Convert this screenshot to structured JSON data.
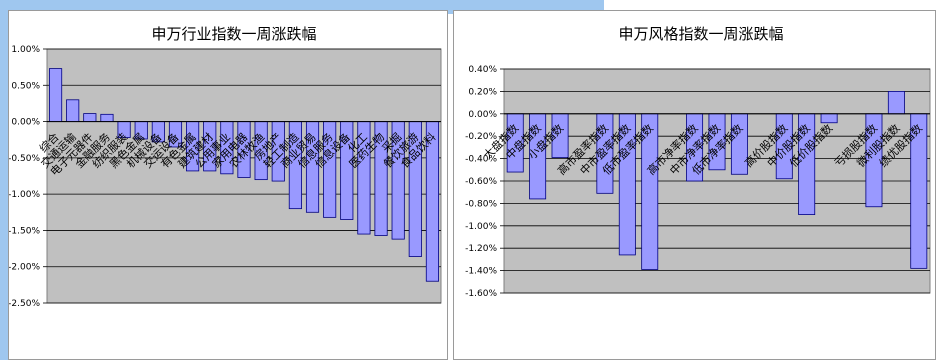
{
  "chart_data": [
    {
      "type": "bar",
      "title": "申万行业指数一周涨跌幅",
      "xlabel": "",
      "ylabel": "",
      "ylim": [
        -2.5,
        1.0
      ],
      "yticks": [
        "1.00%",
        "0.50%",
        "0.00%",
        "-0.50%",
        "-1.00%",
        "-1.50%",
        "-2.00%",
        "-2.50%"
      ],
      "ytick_values": [
        1.0,
        0.5,
        0.0,
        -0.5,
        -1.0,
        -1.5,
        -2.0,
        -2.5
      ],
      "grid": true,
      "categories": [
        "综合",
        "交通运输",
        "电子元器件",
        "金融服务",
        "纺织服装",
        "黑色金属",
        "机械设备",
        "交运设备",
        "有色金属",
        "建筑建材",
        "公用事业",
        "家用电器",
        "农林牧渔",
        "房地产",
        "轻工制造",
        "商业贸易",
        "信息服务",
        "信息设备",
        "化工",
        "医药生物",
        "采掘",
        "餐饮旅游",
        "食品饮料"
      ],
      "values": [
        0.73,
        0.3,
        0.11,
        0.1,
        -0.22,
        -0.24,
        -0.28,
        -0.35,
        -0.68,
        -0.68,
        -0.72,
        -0.77,
        -0.8,
        -0.82,
        -1.2,
        -1.25,
        -1.32,
        -1.35,
        -1.55,
        -1.57,
        -1.62,
        -1.86,
        -2.2
      ]
    },
    {
      "type": "bar",
      "title": "申万风格指数一周涨跌幅",
      "xlabel": "",
      "ylabel": "",
      "ylim": [
        -1.6,
        0.4
      ],
      "yticks": [
        "0.40%",
        "0.20%",
        "0.00%",
        "-0.20%",
        "-0.40%",
        "-0.60%",
        "-0.80%",
        "-1.00%",
        "-1.20%",
        "-1.40%",
        "-1.60%"
      ],
      "ytick_values": [
        0.4,
        0.2,
        0.0,
        -0.2,
        -0.4,
        -0.6,
        -0.8,
        -1.0,
        -1.2,
        -1.4,
        -1.6
      ],
      "grid": true,
      "categories": [
        "大盘指数",
        "中盘指数",
        "小盘指数",
        "",
        "高市盈率指数",
        "中市盈率指数",
        "低市盈率指数",
        "",
        "高市净率指数",
        "中市净率指数",
        "低市净率指数",
        "",
        "高价股指数",
        "中价股指数",
        "低价股指数",
        "",
        "亏损股指数",
        "微利股指数",
        "绩优股指数"
      ],
      "values": [
        -0.52,
        -0.76,
        -0.39,
        null,
        -0.71,
        -1.26,
        -1.39,
        null,
        -0.6,
        -0.5,
        -0.54,
        null,
        -0.58,
        -0.9,
        -0.08,
        null,
        -0.83,
        0.2,
        -1.38
      ]
    }
  ],
  "style": {
    "plot_bg": "#c0c0c0",
    "bar_fill": "#9999ff",
    "bar_stroke": "#000080",
    "grid_color": "#000000",
    "background": "#ffffff",
    "frame_color": "#808080",
    "accent_strip": "#9fc7ef"
  }
}
